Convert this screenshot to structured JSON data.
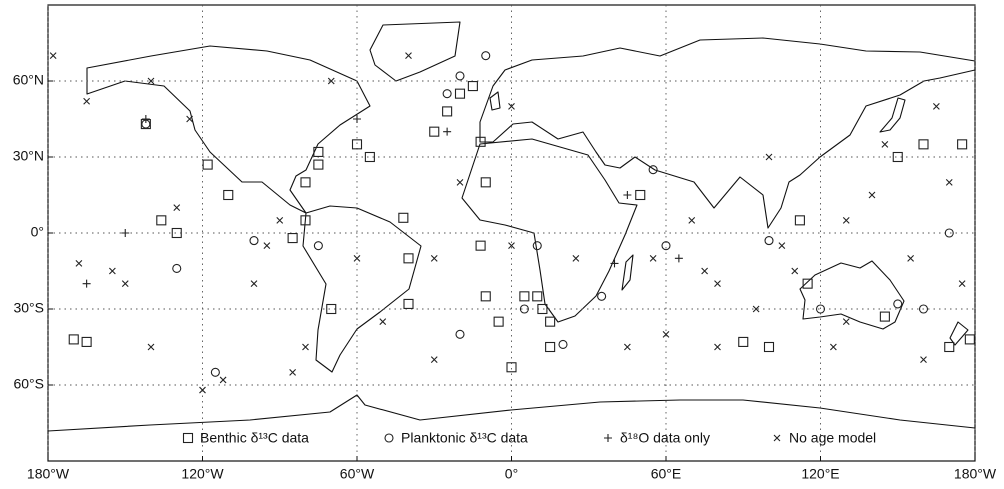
{
  "chart_data": {
    "type": "scatter",
    "xlim": [
      -180,
      180
    ],
    "ylim": [
      -90,
      90
    ],
    "xticks": [
      {
        "value": -180,
        "label": "180°W"
      },
      {
        "value": -120,
        "label": "120°W"
      },
      {
        "value": -60,
        "label": "60°W"
      },
      {
        "value": 0,
        "label": "0°"
      },
      {
        "value": 60,
        "label": "60°E"
      },
      {
        "value": 120,
        "label": "120°E"
      },
      {
        "value": 180,
        "label": "180°W"
      }
    ],
    "yticks": [
      {
        "value": -60,
        "label": "60°S"
      },
      {
        "value": -30,
        "label": "30°S"
      },
      {
        "value": 0,
        "label": "0°"
      },
      {
        "value": 30,
        "label": "30°N"
      },
      {
        "value": 60,
        "label": "60°N"
      }
    ],
    "grid": true,
    "legend": "bottom",
    "series": [
      {
        "name": "Benthic δ¹³C data",
        "marker": "square",
        "color": "#222",
        "x": [
          -170,
          -165,
          -136,
          -130,
          -142,
          -118,
          -110,
          -85,
          -80,
          -75,
          -75,
          -55,
          -42,
          -40,
          -25,
          -20,
          -15,
          -12,
          -10,
          -12,
          -10,
          -5,
          5,
          10,
          12,
          15,
          15,
          0,
          -30,
          50,
          90,
          100,
          112,
          115,
          150,
          160,
          175,
          170,
          178,
          145,
          -80,
          -70,
          -40,
          -60
        ],
        "y": [
          -42,
          -43,
          5,
          0,
          43,
          27,
          15,
          -2,
          5,
          32,
          27,
          30,
          6,
          -10,
          48,
          55,
          58,
          36,
          20,
          -5,
          -25,
          -35,
          -25,
          -25,
          -30,
          -35,
          -45,
          -53,
          40,
          15,
          -43,
          -45,
          5,
          -20,
          30,
          35,
          35,
          -45,
          -42,
          -33,
          20,
          -30,
          -28,
          35
        ]
      },
      {
        "name": "Planktonic δ¹³C data",
        "marker": "circle",
        "color": "#222",
        "x": [
          -130,
          -100,
          -75,
          -20,
          -25,
          -10,
          10,
          55,
          60,
          100,
          120,
          150,
          160,
          170,
          -115,
          35,
          20,
          5,
          -20,
          -142
        ],
        "y": [
          -14,
          -3,
          -5,
          62,
          55,
          70,
          -5,
          25,
          -5,
          -3,
          -30,
          -28,
          -30,
          0,
          -55,
          -25,
          -44,
          -30,
          -40,
          43
        ]
      },
      {
        "name": "δ¹⁸O data only",
        "marker": "plus",
        "color": "#222",
        "x": [
          -165,
          -150,
          -142,
          -60,
          40,
          45,
          65,
          -25
        ],
        "y": [
          -20,
          0,
          45,
          45,
          -12,
          15,
          -10,
          40
        ]
      },
      {
        "name": "No age model",
        "marker": "x",
        "color": "#222",
        "x": [
          -178,
          -165,
          -168,
          -155,
          -150,
          -140,
          -130,
          -120,
          -112,
          -100,
          -95,
          -90,
          -80,
          -85,
          -60,
          -50,
          -30,
          -20,
          0,
          25,
          45,
          55,
          60,
          70,
          75,
          80,
          95,
          105,
          110,
          125,
          130,
          140,
          145,
          155,
          160,
          165,
          170,
          175,
          -125,
          -140,
          100,
          -30,
          80,
          130,
          -70,
          -40,
          0
        ],
        "y": [
          70,
          52,
          -12,
          -15,
          -20,
          -45,
          10,
          -62,
          -58,
          -20,
          -5,
          5,
          -45,
          -55,
          -10,
          -35,
          -10,
          20,
          -5,
          -10,
          -45,
          -10,
          -40,
          5,
          -15,
          -45,
          -30,
          -5,
          -15,
          -45,
          -35,
          15,
          35,
          -10,
          -50,
          50,
          20,
          -20,
          45,
          60,
          30,
          -50,
          -20,
          5,
          60,
          70,
          50
        ]
      }
    ]
  }
}
